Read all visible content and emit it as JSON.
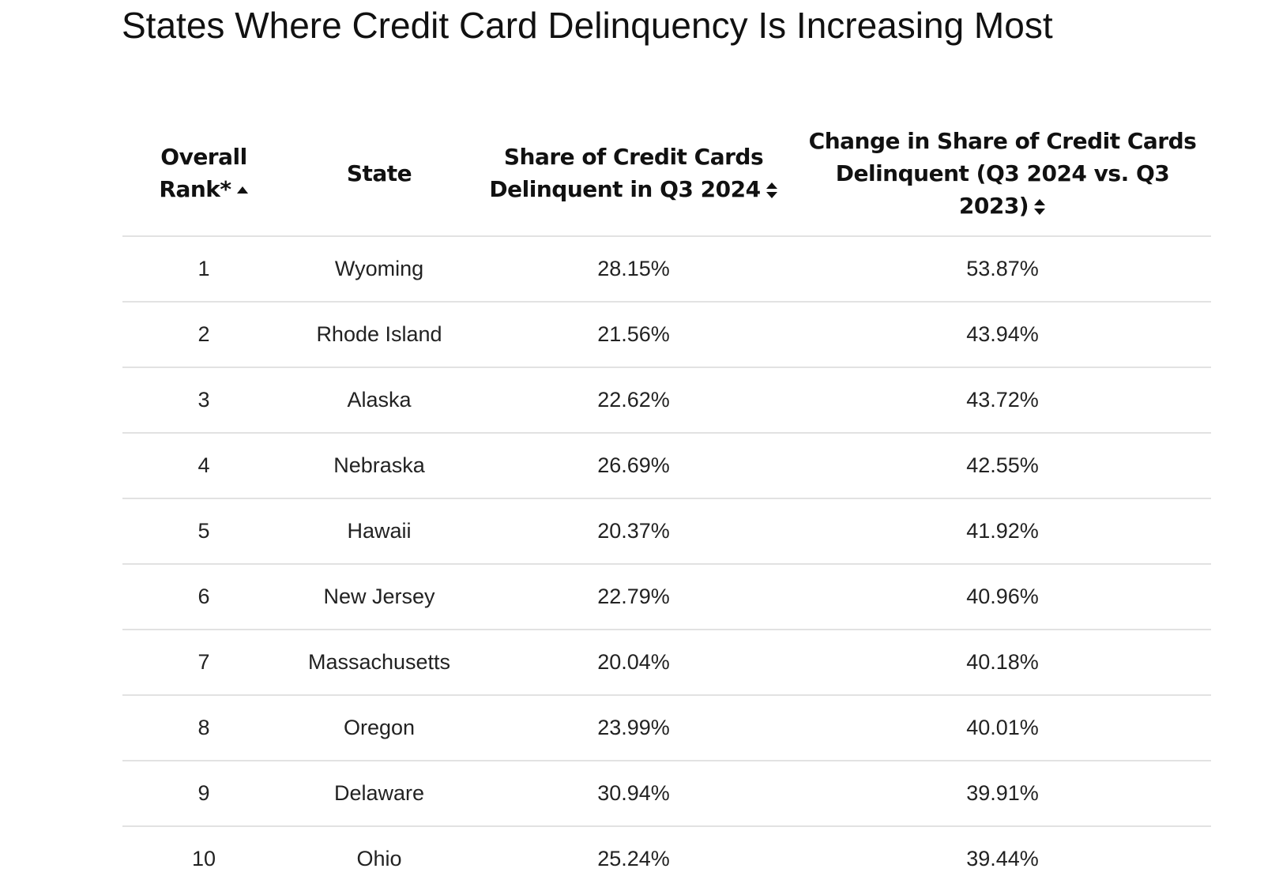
{
  "title": "States Where Credit Card Delinquency Is Increasing Most",
  "table": {
    "headers": {
      "rank": "Overall Rank*",
      "state": "State",
      "share": "Share of Credit Cards Delinquent in Q3 2024",
      "change": "Change in Share of Credit Cards Delinquent (Q3 2024 vs. Q3 2023)"
    },
    "sort": {
      "rank": "ascending",
      "share": "unsorted",
      "change": "unsorted"
    },
    "rows": [
      {
        "rank": "1",
        "state": "Wyoming",
        "share": "28.15%",
        "change": "53.87%"
      },
      {
        "rank": "2",
        "state": "Rhode Island",
        "share": "21.56%",
        "change": "43.94%"
      },
      {
        "rank": "3",
        "state": "Alaska",
        "share": "22.62%",
        "change": "43.72%"
      },
      {
        "rank": "4",
        "state": "Nebraska",
        "share": "26.69%",
        "change": "42.55%"
      },
      {
        "rank": "5",
        "state": "Hawaii",
        "share": "20.37%",
        "change": "41.92%"
      },
      {
        "rank": "6",
        "state": "New Jersey",
        "share": "22.79%",
        "change": "40.96%"
      },
      {
        "rank": "7",
        "state": "Massachusetts",
        "share": "20.04%",
        "change": "40.18%"
      },
      {
        "rank": "8",
        "state": "Oregon",
        "share": "23.99%",
        "change": "40.01%"
      },
      {
        "rank": "9",
        "state": "Delaware",
        "share": "30.94%",
        "change": "39.91%"
      },
      {
        "rank": "10",
        "state": "Ohio",
        "share": "25.24%",
        "change": "39.44%"
      }
    ]
  },
  "icons": {
    "sort_ascending": "sort-ascending-icon",
    "sort_both": "sort-both-icon"
  },
  "colors": {
    "text": "#111111",
    "divider": "#e2e2e2",
    "background": "#ffffff"
  }
}
